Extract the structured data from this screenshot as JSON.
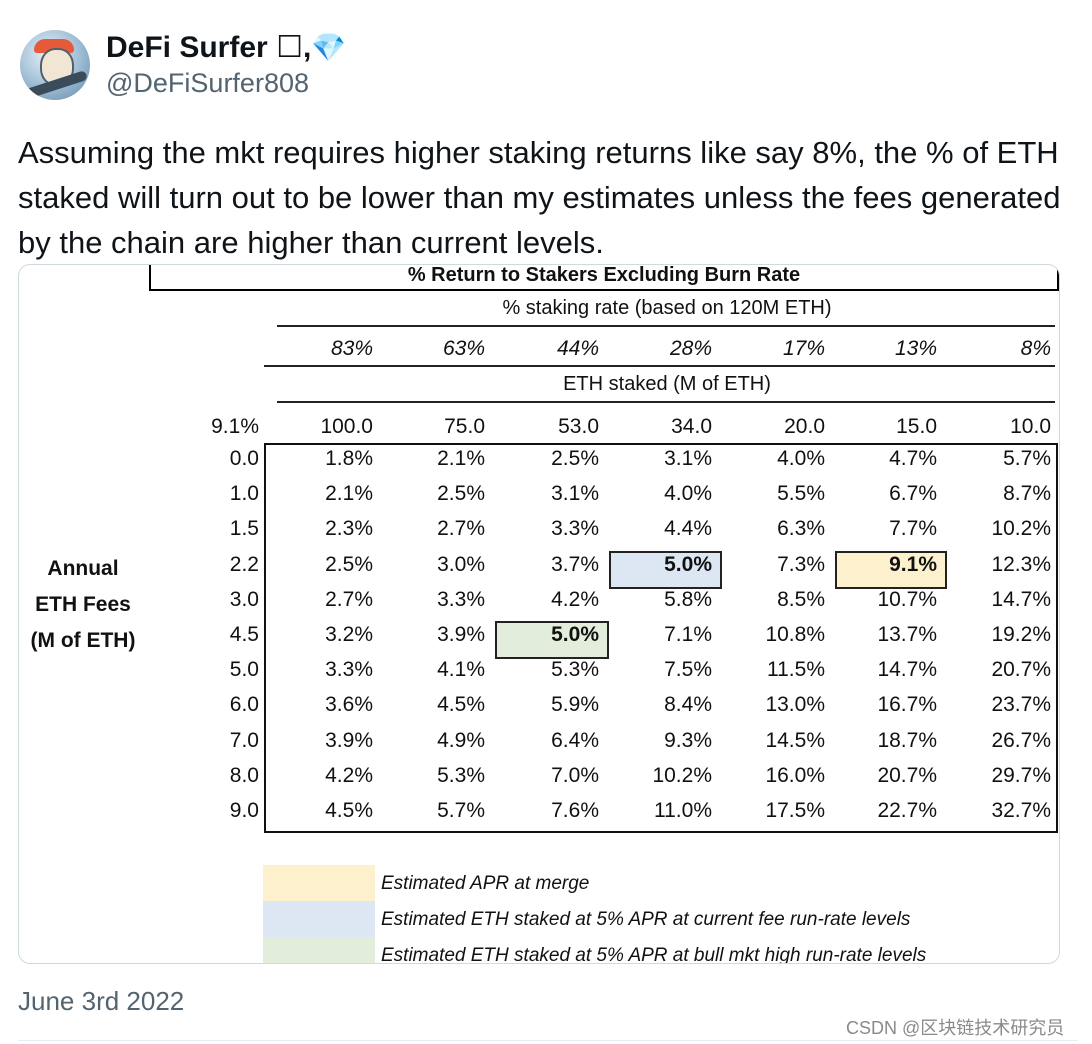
{
  "user": {
    "name": "DeFi Surfer",
    "name_suffix": "☐,",
    "verified_badge": "💎",
    "handle": "@DeFiSurfer808"
  },
  "tweet": {
    "text": "Assuming the mkt requires higher staking returns like say 8%, the % of ETH staked will turn out to be lower than my estimates unless the fees generated by the chain are higher than current levels.",
    "date": "June 3rd 2022"
  },
  "table": {
    "title": "% Return to Stakers Excluding Burn Rate",
    "staking_rate_header": "% staking rate (based on 120M ETH)",
    "staking_rates": [
      "83%",
      "63%",
      "44%",
      "28%",
      "17%",
      "13%",
      "8%"
    ],
    "eth_staked_header": "ETH staked (M of ETH)",
    "corner_value": "9.1%",
    "eth_staked": [
      "100.0",
      "75.0",
      "53.0",
      "34.0",
      "20.0",
      "15.0",
      "10.0"
    ],
    "row_axis_label": [
      "Annual",
      "ETH Fees",
      "(M of ETH)"
    ],
    "rows": [
      {
        "fee": "0.0",
        "values": [
          "1.8%",
          "2.1%",
          "2.5%",
          "3.1%",
          "4.0%",
          "4.7%",
          "5.7%"
        ]
      },
      {
        "fee": "1.0",
        "values": [
          "2.1%",
          "2.5%",
          "3.1%",
          "4.0%",
          "5.5%",
          "6.7%",
          "8.7%"
        ]
      },
      {
        "fee": "1.5",
        "values": [
          "2.3%",
          "2.7%",
          "3.3%",
          "4.4%",
          "6.3%",
          "7.7%",
          "10.2%"
        ]
      },
      {
        "fee": "2.2",
        "values": [
          "2.5%",
          "3.0%",
          "3.7%",
          "5.0%",
          "7.3%",
          "9.1%",
          "12.3%"
        ]
      },
      {
        "fee": "3.0",
        "values": [
          "2.7%",
          "3.3%",
          "4.2%",
          "5.8%",
          "8.5%",
          "10.7%",
          "14.7%"
        ]
      },
      {
        "fee": "4.5",
        "values": [
          "3.2%",
          "3.9%",
          "5.0%",
          "7.1%",
          "10.8%",
          "13.7%",
          "19.2%"
        ]
      },
      {
        "fee": "5.0",
        "values": [
          "3.3%",
          "4.1%",
          "5.3%",
          "7.5%",
          "11.5%",
          "14.7%",
          "20.7%"
        ]
      },
      {
        "fee": "6.0",
        "values": [
          "3.6%",
          "4.5%",
          "5.9%",
          "8.4%",
          "13.0%",
          "16.7%",
          "23.7%"
        ]
      },
      {
        "fee": "7.0",
        "values": [
          "3.9%",
          "4.9%",
          "6.4%",
          "9.3%",
          "14.5%",
          "18.7%",
          "26.7%"
        ]
      },
      {
        "fee": "8.0",
        "values": [
          "4.2%",
          "5.3%",
          "7.0%",
          "10.2%",
          "16.0%",
          "20.7%",
          "29.7%"
        ]
      },
      {
        "fee": "9.0",
        "values": [
          "4.5%",
          "5.7%",
          "7.6%",
          "11.0%",
          "17.5%",
          "22.7%",
          "32.7%"
        ]
      }
    ],
    "highlights": [
      {
        "row": 3,
        "col": 3,
        "color": "#dde7f3"
      },
      {
        "row": 3,
        "col": 5,
        "color": "#fdf0cc"
      },
      {
        "row": 5,
        "col": 2,
        "color": "#e2eedb"
      }
    ],
    "legend": [
      {
        "color": "#fdf0cc",
        "label": "Estimated APR at merge"
      },
      {
        "color": "#dde7f3",
        "label": "Estimated ETH staked at 5% APR at current fee run-rate levels"
      },
      {
        "color": "#e2eedb",
        "label": "Estimated ETH staked at 5% APR at bull mkt high run-rate levels"
      }
    ]
  },
  "watermark": "CSDN @区块链技术研究员"
}
